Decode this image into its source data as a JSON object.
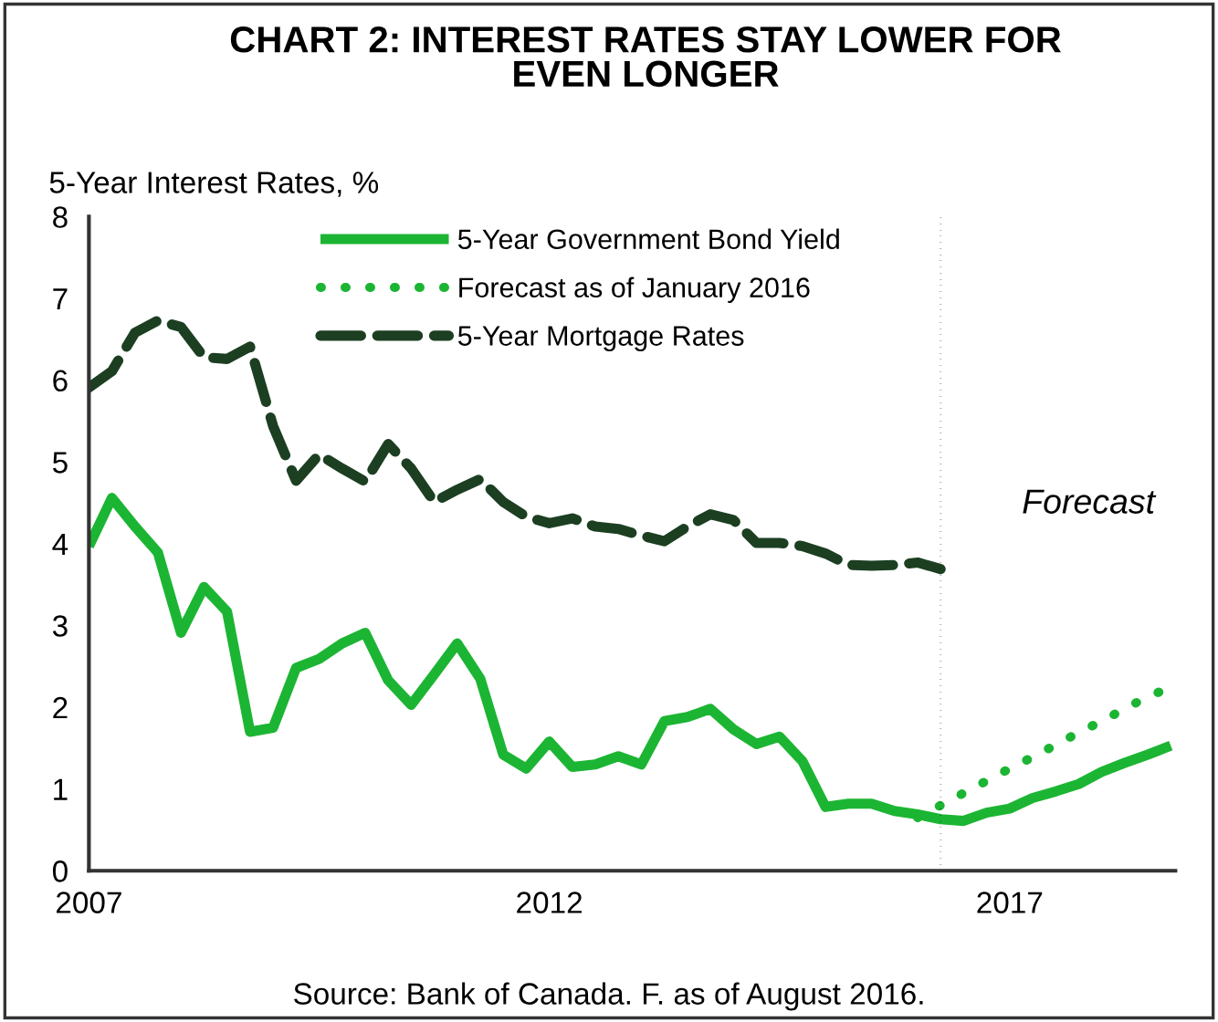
{
  "chart_data": {
    "type": "line",
    "title": "CHART 2: INTEREST RATES STAY LOWER FOR\nEVEN LONGER",
    "ylabel": "5-Year Interest Rates, %",
    "x": [
      2007.0,
      2007.25,
      2007.5,
      2007.75,
      2008.0,
      2008.25,
      2008.5,
      2008.75,
      2009.0,
      2009.25,
      2009.5,
      2009.75,
      2010.0,
      2010.25,
      2010.5,
      2010.75,
      2011.0,
      2011.25,
      2011.5,
      2011.75,
      2012.0,
      2012.25,
      2012.5,
      2012.75,
      2013.0,
      2013.25,
      2013.5,
      2013.75,
      2014.0,
      2014.25,
      2014.5,
      2014.75,
      2015.0,
      2015.25,
      2015.5,
      2015.75,
      2016.0,
      2016.25,
      2016.5,
      2016.75,
      2017.0,
      2017.25,
      2017.5,
      2017.75,
      2018.0,
      2018.25,
      2018.5,
      2018.75
    ],
    "series": [
      {
        "name": "5-Year Government Bond Yield",
        "color": "#1cb533",
        "line_style": "solid",
        "values": [
          3.97,
          4.56,
          4.21,
          3.89,
          2.91,
          3.47,
          3.17,
          1.7,
          1.75,
          2.48,
          2.59,
          2.78,
          2.91,
          2.33,
          2.03,
          2.4,
          2.78,
          2.35,
          1.42,
          1.25,
          1.58,
          1.27,
          1.3,
          1.4,
          1.3,
          1.83,
          1.88,
          1.98,
          1.73,
          1.55,
          1.64,
          1.34,
          0.78,
          0.82,
          0.82,
          0.73,
          0.69,
          0.63,
          0.61,
          0.71,
          0.76,
          0.89,
          0.97,
          1.06,
          1.21,
          1.32,
          1.42,
          1.53
        ]
      },
      {
        "name": "Forecast as of January 2016",
        "color": "#1cb533",
        "line_style": "dotted",
        "x": [
          2016.0,
          2016.25,
          2016.5,
          2016.75,
          2017.0,
          2017.25,
          2017.5,
          2017.75,
          2018.0,
          2018.25,
          2018.5,
          2018.7
        ],
        "values": [
          0.65,
          0.8,
          0.95,
          1.1,
          1.25,
          1.39,
          1.54,
          1.69,
          1.83,
          1.98,
          2.13,
          2.22
        ]
      },
      {
        "name": "5-Year Mortgage Rates",
        "color": "#1c3f22",
        "line_style": "dashed",
        "values": [
          5.91,
          6.11,
          6.58,
          6.73,
          6.65,
          6.28,
          6.26,
          6.41,
          5.44,
          4.77,
          5.09,
          4.92,
          4.76,
          5.22,
          4.92,
          4.51,
          4.66,
          4.79,
          4.51,
          4.33,
          4.25,
          4.31,
          4.21,
          4.18,
          4.1,
          4.03,
          4.21,
          4.36,
          4.29,
          4.01,
          4.01,
          3.97,
          3.88,
          3.74,
          3.73,
          3.74,
          3.77,
          3.69,
          null,
          null,
          null,
          null,
          null,
          null,
          null,
          null,
          null,
          null
        ]
      }
    ],
    "xlim": [
      2007,
      2018.8
    ],
    "xticks": [
      2007,
      2012,
      2017
    ],
    "ylim": [
      0,
      8
    ],
    "yticks": [
      0,
      1,
      2,
      3,
      4,
      5,
      6,
      7,
      8
    ],
    "ref_lines": [
      {
        "axis": "x",
        "value": 2016.25,
        "color": "#000000",
        "line_style": "dotted"
      }
    ],
    "annotations": [
      "Forecast",
      "Source: Bank of Canada. F. as of August 2016."
    ],
    "legend": "top",
    "grid": false,
    "marker": "none"
  }
}
